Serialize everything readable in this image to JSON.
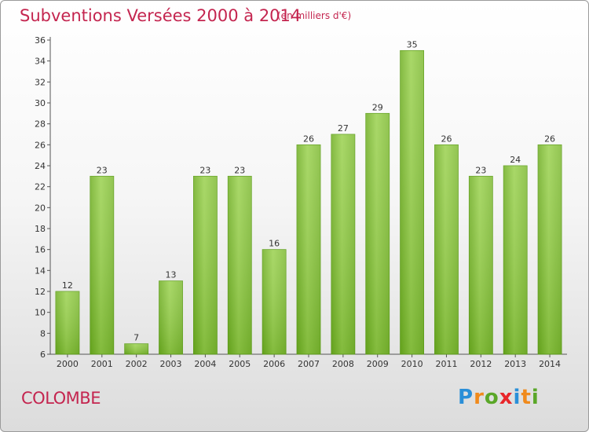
{
  "header": {
    "title": "Subventions Versées 2000 à 2014",
    "unit": "(en milliers d'€)"
  },
  "commune": "COLOMBE",
  "logo": {
    "text": "Proxiti",
    "letters": [
      "P",
      "r",
      "o",
      "x",
      "i",
      "t",
      "i"
    ],
    "colors": [
      "#2a8fd8",
      "#f08a1c",
      "#5aa728",
      "#e8262a",
      "#2a8fd8",
      "#f08a1c",
      "#5aa728"
    ]
  },
  "chart_data": {
    "type": "bar",
    "title": "Subventions Versées 2000 à 2014",
    "subtitle": "(en milliers d'€)",
    "xlabel": "",
    "ylabel": "",
    "categories": [
      "2000",
      "2001",
      "2002",
      "2003",
      "2004",
      "2005",
      "2006",
      "2007",
      "2008",
      "2009",
      "2010",
      "2011",
      "2012",
      "2013",
      "2014"
    ],
    "values": [
      12,
      23,
      7,
      13,
      23,
      23,
      16,
      26,
      27,
      29,
      35,
      26,
      23,
      24,
      26
    ],
    "ylim": [
      6,
      36
    ],
    "yticks": [
      6,
      8,
      10,
      12,
      14,
      16,
      18,
      20,
      22,
      24,
      26,
      28,
      30,
      32,
      34,
      36
    ],
    "grid": false,
    "bar_color": "#8cc63f",
    "bar_color_dark": "#5e9e1a"
  }
}
